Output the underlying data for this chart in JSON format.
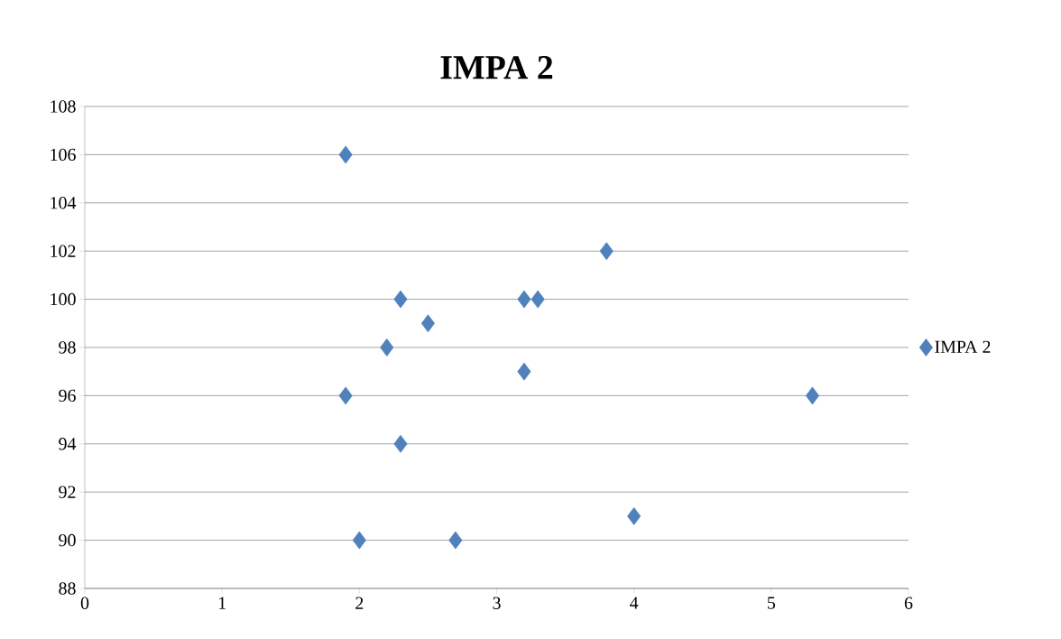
{
  "chart_data": {
    "type": "scatter",
    "title": "IMPA 2",
    "series": [
      {
        "name": "IMPA 2",
        "color": "#4f81bd",
        "x": [
          1.9,
          3.8,
          2.3,
          3.2,
          3.3,
          2.5,
          2.2,
          3.2,
          1.9,
          5.3,
          2.3,
          4.0,
          2.0,
          2.7
        ],
        "values": [
          106,
          102,
          100,
          100,
          100,
          99,
          98,
          97,
          96,
          96,
          94,
          91,
          90,
          90
        ]
      }
    ],
    "xlim": [
      0,
      6
    ],
    "xticks": [
      0,
      1,
      2,
      3,
      4,
      5,
      6
    ],
    "ylim": [
      88,
      108
    ],
    "yticks": [
      88,
      90,
      92,
      94,
      96,
      98,
      100,
      102,
      104,
      106,
      108
    ],
    "grid": "y",
    "legend": "right",
    "marker": "diamond"
  }
}
